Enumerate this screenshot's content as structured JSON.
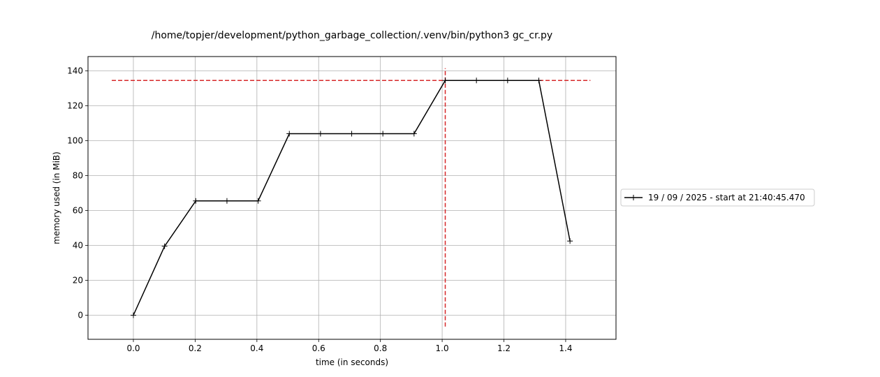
{
  "chart_data": {
    "type": "line",
    "title": "/home/topjer/development/python_garbage_collection/.venv/bin/python3 gc_cr.py",
    "xlabel": "time (in seconds)",
    "ylabel": "memory used (in MiB)",
    "xlim": [
      -0.147,
      1.563
    ],
    "ylim": [
      -13.8,
      148.2
    ],
    "xticks": [
      0.0,
      0.2,
      0.4,
      0.6,
      0.8,
      1.0,
      1.2,
      1.4
    ],
    "xtick_labels": [
      "0.0",
      "0.2",
      "0.4",
      "0.6",
      "0.8",
      "1.0",
      "1.2",
      "1.4"
    ],
    "yticks": [
      0,
      20,
      40,
      60,
      80,
      100,
      120,
      140
    ],
    "ytick_labels": [
      "0",
      "20",
      "40",
      "60",
      "80",
      "100",
      "120",
      "140"
    ],
    "grid": true,
    "legend_position": "right-outside",
    "series": [
      {
        "name": "19 / 09 / 2025 - start at 21:40:45.470",
        "color": "#000000",
        "marker": "+",
        "x": [
          0.0,
          0.101,
          0.202,
          0.303,
          0.404,
          0.505,
          0.606,
          0.707,
          0.808,
          0.909,
          1.01,
          1.111,
          1.212,
          1.313,
          1.414
        ],
        "y": [
          0.0,
          39.5,
          65.5,
          65.5,
          65.5,
          104.0,
          104.0,
          104.0,
          104.0,
          104.0,
          134.5,
          134.5,
          134.5,
          134.5,
          42.5
        ]
      }
    ],
    "reference_lines": [
      {
        "orientation": "horizontal",
        "value": 134.5,
        "from": -0.07,
        "to": 1.48,
        "color": "#d62728",
        "style": "dashed"
      },
      {
        "orientation": "vertical",
        "value": 1.01,
        "from": -6.5,
        "to": 141.5,
        "color": "#d62728",
        "style": "dashed"
      }
    ]
  }
}
